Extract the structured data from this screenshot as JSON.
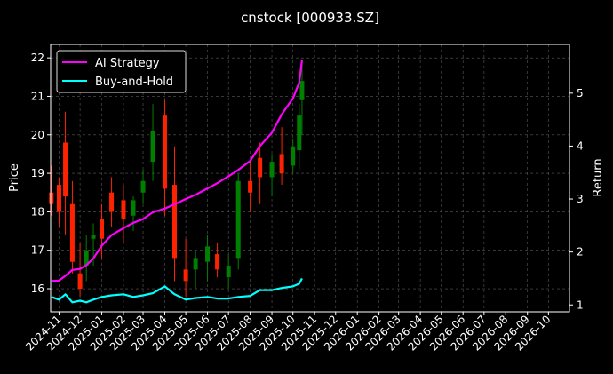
{
  "chart_data": {
    "type": "line",
    "title": "cnstock [000933.SZ]",
    "xlabel": "",
    "ylabel_left": "Price",
    "ylabel_right": "Return",
    "x_ticks": [
      "2024-11",
      "2024-12",
      "2025-01",
      "2025-02",
      "2025-03",
      "2025-04",
      "2025-05",
      "2025-06",
      "2025-07",
      "2025-08",
      "2025-09",
      "2025-10",
      "2025-11",
      "2025-12",
      "2026-01",
      "2026-02",
      "2026-03",
      "2026-04",
      "2026-05",
      "2026-06",
      "2026-07",
      "2026-08",
      "2026-09",
      "2026-10"
    ],
    "xlim": [
      "2024-10-20",
      "2026-10-31"
    ],
    "y_left_ticks": [
      "16",
      "17",
      "18",
      "19",
      "20",
      "21",
      "22"
    ],
    "ylim_left": [
      15.4,
      22.35
    ],
    "y_right_ticks": [
      "1",
      "2",
      "3",
      "4",
      "5"
    ],
    "ylim_right": [
      0.87,
      5.92
    ],
    "grid": true,
    "legend": {
      "placement": "top-left",
      "entries": [
        "AI Strategy",
        "Buy-and-Hold"
      ]
    },
    "colors": {
      "background": "#000000",
      "ai_strategy": "#ff00ff",
      "buy_and_hold": "#00ffff",
      "candle_up": "#008000",
      "candle_down": "#ff2200",
      "grid": "#5a5a5a",
      "text": "#ffffff"
    },
    "series": [
      {
        "name": "AI Strategy",
        "axis": "right",
        "x": [
          "2024-10-21",
          "2024-11-01",
          "2024-11-10",
          "2024-11-20",
          "2024-12-01",
          "2024-12-10",
          "2024-12-20",
          "2025-01-01",
          "2025-01-15",
          "2025-02-01",
          "2025-02-15",
          "2025-03-01",
          "2025-03-15",
          "2025-04-01",
          "2025-04-15",
          "2025-05-01",
          "2025-05-15",
          "2025-06-01",
          "2025-06-15",
          "2025-07-01",
          "2025-07-15",
          "2025-08-01",
          "2025-08-15",
          "2025-09-01",
          "2025-09-15",
          "2025-10-01",
          "2025-10-10",
          "2025-10-14"
        ],
        "values": [
          1.45,
          1.46,
          1.55,
          1.66,
          1.68,
          1.75,
          1.88,
          2.12,
          2.32,
          2.45,
          2.55,
          2.62,
          2.75,
          2.82,
          2.9,
          3.0,
          3.08,
          3.2,
          3.3,
          3.43,
          3.55,
          3.72,
          4.0,
          4.25,
          4.6,
          4.9,
          5.2,
          5.62
        ]
      },
      {
        "name": "Buy-and-Hold",
        "axis": "right",
        "x": [
          "2024-10-21",
          "2024-11-01",
          "2024-11-10",
          "2024-11-20",
          "2024-12-01",
          "2024-12-10",
          "2024-12-20",
          "2025-01-01",
          "2025-01-15",
          "2025-02-01",
          "2025-02-15",
          "2025-03-01",
          "2025-03-15",
          "2025-04-01",
          "2025-04-15",
          "2025-05-01",
          "2025-05-15",
          "2025-06-01",
          "2025-06-15",
          "2025-07-01",
          "2025-07-15",
          "2025-08-01",
          "2025-08-15",
          "2025-09-01",
          "2025-09-15",
          "2025-10-01",
          "2025-10-10",
          "2025-10-14"
        ],
        "values": [
          1.15,
          1.1,
          1.2,
          1.05,
          1.08,
          1.05,
          1.1,
          1.15,
          1.18,
          1.2,
          1.15,
          1.18,
          1.22,
          1.35,
          1.2,
          1.1,
          1.13,
          1.15,
          1.12,
          1.12,
          1.15,
          1.17,
          1.28,
          1.28,
          1.32,
          1.35,
          1.4,
          1.5
        ]
      }
    ],
    "price": {
      "axis": "left",
      "x": [
        "2024-10-21",
        "2024-11-01",
        "2024-11-10",
        "2024-11-20",
        "2024-12-01",
        "2024-12-10",
        "2024-12-20",
        "2025-01-01",
        "2025-01-15",
        "2025-02-01",
        "2025-02-15",
        "2025-03-01",
        "2025-03-15",
        "2025-04-01",
        "2025-04-15",
        "2025-05-01",
        "2025-05-15",
        "2025-06-01",
        "2025-06-15",
        "2025-07-01",
        "2025-07-15",
        "2025-08-01",
        "2025-08-15",
        "2025-09-01",
        "2025-09-15",
        "2025-10-01",
        "2025-10-10",
        "2025-10-14"
      ],
      "high": [
        19.2,
        18.9,
        20.6,
        18.8,
        17.2,
        17.4,
        17.7,
        18.2,
        18.9,
        18.7,
        18.4,
        19.1,
        20.8,
        20.9,
        19.7,
        17.3,
        17.0,
        17.4,
        17.2,
        16.9,
        19.0,
        19.3,
        19.8,
        19.5,
        20.2,
        19.9,
        20.8,
        21.9
      ],
      "low": [
        17.9,
        17.6,
        17.4,
        16.4,
        15.8,
        16.2,
        16.6,
        16.8,
        17.6,
        17.2,
        17.5,
        18.2,
        18.8,
        17.9,
        16.2,
        15.8,
        16.0,
        16.2,
        16.3,
        16.0,
        16.5,
        18.0,
        18.2,
        18.4,
        18.7,
        19.0,
        19.1,
        20.0
      ],
      "open": [
        18.5,
        18.7,
        19.8,
        18.2,
        16.4,
        16.6,
        17.3,
        17.8,
        18.5,
        18.3,
        17.9,
        18.5,
        19.3,
        20.5,
        18.7,
        16.5,
        16.5,
        16.7,
        16.9,
        16.3,
        16.8,
        18.8,
        19.4,
        18.9,
        19.5,
        19.2,
        19.6,
        20.9
      ],
      "close": [
        18.2,
        18.0,
        18.4,
        16.7,
        16.0,
        17.0,
        17.4,
        17.3,
        18.0,
        17.8,
        18.3,
        18.8,
        20.1,
        18.6,
        16.8,
        16.2,
        16.8,
        17.1,
        16.5,
        16.6,
        18.8,
        18.5,
        18.9,
        19.3,
        19.0,
        19.7,
        20.5,
        21.4
      ]
    }
  }
}
